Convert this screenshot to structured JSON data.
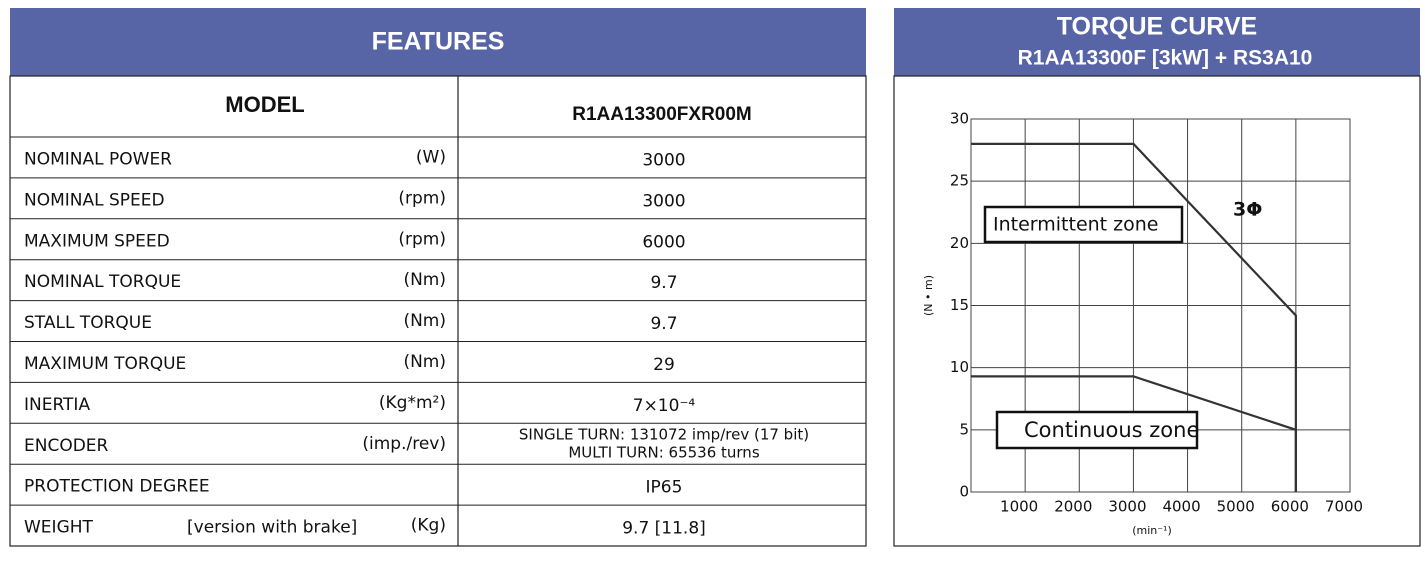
{
  "features": {
    "title": "FEATURES",
    "header": [
      "MODEL",
      "R1AA13300FXR00M"
    ],
    "rows": [
      {
        "label": "NOMINAL POWER",
        "unit": "(W)",
        "value": "3000"
      },
      {
        "label": "NOMINAL SPEED",
        "unit": "(rpm)",
        "value": "3000"
      },
      {
        "label": "MAXIMUM SPEED",
        "unit": "(rpm)",
        "value": "6000"
      },
      {
        "label": "NOMINAL TORQUE",
        "unit": "(Nm)",
        "value": "9.7"
      },
      {
        "label": "STALL TORQUE",
        "unit": "(Nm)",
        "value": "9.7"
      },
      {
        "label": "MAXIMUM TORQUE",
        "unit": "(Nm)",
        "value": "29"
      },
      {
        "label": "INERTIA",
        "unit": "(Kg*m²)",
        "value": "7×10⁻⁴"
      },
      {
        "label": "ENCODER",
        "unit": "(imp./rev)",
        "value": [
          "SINGLE TURN: 131072 imp/rev (17 bit)",
          "MULTI TURN: 65536 turns"
        ]
      },
      {
        "label": "PROTECTION DEGREE",
        "value": "IP65"
      },
      {
        "label": "WEIGHT",
        "note": "[version with brake]",
        "unit": "(Kg)",
        "value": "9.7 [11.8]"
      }
    ]
  },
  "chart_data": {
    "type": "line",
    "title": "TORQUE CURVE",
    "subtitle": "R1AA13300F [3kW] + RS3A10",
    "ylabel": "(N • m)",
    "xlabel": "(min⁻¹)",
    "x": [
      0,
      3000,
      6000,
      6000
    ],
    "series": [
      {
        "name": "Intermittent zone",
        "color": "#333333",
        "values": [
          28,
          28,
          14.2,
          0
        ]
      },
      {
        "name": "Continuous zone",
        "color": "#333333",
        "values": [
          9.3,
          9.3,
          5,
          0
        ]
      }
    ],
    "annotation": "3Φ",
    "xlim": [
      0,
      7000
    ],
    "xticks": [
      1000,
      2000,
      3000,
      4000,
      5000,
      6000,
      7000
    ],
    "ylim": [
      0,
      30
    ],
    "yticks": [
      0,
      5,
      10,
      15,
      20,
      25,
      30
    ],
    "grid": true
  }
}
